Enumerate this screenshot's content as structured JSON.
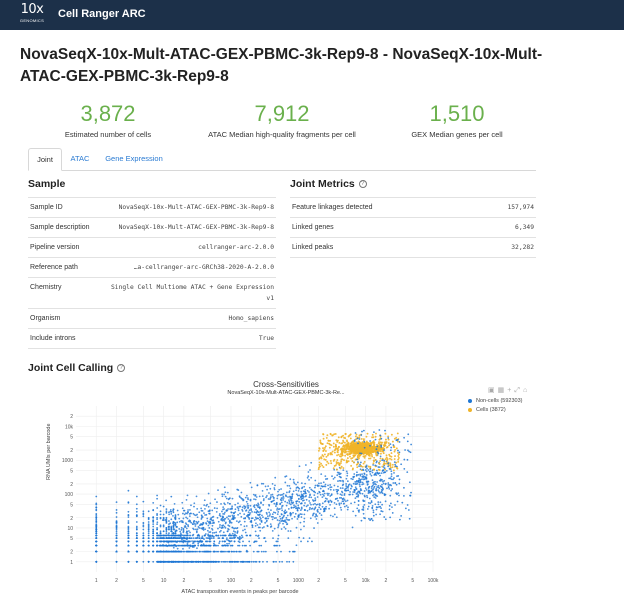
{
  "header": {
    "logo_big": "10x",
    "logo_small": "GENOMICS",
    "product": "Cell Ranger ARC"
  },
  "page_title": "NovaSeqX-10x-Mult-ATAC-GEX-PBMC-3k-Rep9-8 - NovaSeqX-10x-Mult-ATAC-GEX-PBMC-3k-Rep9-8",
  "kpis": [
    {
      "value": "3,872",
      "label": "Estimated number of cells"
    },
    {
      "value": "7,912",
      "label": "ATAC Median high-quality fragments per cell"
    },
    {
      "value": "1,510",
      "label": "GEX Median genes per cell"
    }
  ],
  "tabs": [
    {
      "label": "Joint",
      "active": true
    },
    {
      "label": "ATAC",
      "active": false
    },
    {
      "label": "Gene Expression",
      "active": false
    }
  ],
  "sample": {
    "title": "Sample",
    "rows": [
      {
        "key": "Sample ID",
        "value": "NovaSeqX-10x-Mult-ATAC-GEX-PBMC-3k-Rep9-8"
      },
      {
        "key": "Sample description",
        "value": "NovaSeqX-10x-Mult-ATAC-GEX-PBMC-3k-Rep9-8"
      },
      {
        "key": "Pipeline version",
        "value": "cellranger-arc-2.0.0"
      },
      {
        "key": "Reference path",
        "value": "…a-cellranger-arc-GRCh38-2020-A-2.0.0"
      },
      {
        "key": "Chemistry",
        "value": "Single Cell Multiome ATAC + Gene Expression v1"
      },
      {
        "key": "Organism",
        "value": "Homo_sapiens"
      },
      {
        "key": "Include introns",
        "value": "True"
      }
    ]
  },
  "joint_metrics": {
    "title": "Joint Metrics",
    "rows": [
      {
        "key": "Feature linkages detected",
        "value": "157,974"
      },
      {
        "key": "Linked genes",
        "value": "6,349"
      },
      {
        "key": "Linked peaks",
        "value": "32,282"
      }
    ]
  },
  "cell_calling": {
    "title": "Joint Cell Calling",
    "help_icon": "question-circle-icon",
    "modebar_icons": [
      "camera-icon",
      "zoom-box-icon",
      "plus-icon",
      "autoscale-icon",
      "home-icon"
    ]
  },
  "chart_data": {
    "type": "scatter",
    "title": "Cross-Sensitivities",
    "subtitle": "NovaSeqX-10x-Mult-ATAC-GEX-PBMC-3k-Re...",
    "xlabel": "ATAC transposition events in peaks per barcode",
    "ylabel": "RNA UMIs per barcode",
    "x_scale": "log",
    "y_scale": "log",
    "xlim": [
      0.5,
      100000
    ],
    "ylim": [
      0.5,
      40000
    ],
    "x_ticks": [
      "1",
      "2",
      "5",
      "10",
      "2",
      "5",
      "100",
      "2",
      "5",
      "1000",
      "2",
      "5",
      "10k",
      "2",
      "5",
      "100k"
    ],
    "y_ticks": [
      "1",
      "2",
      "5",
      "10",
      "2",
      "5",
      "100",
      "2",
      "5",
      "1000",
      "2",
      "5",
      "10k",
      "2"
    ],
    "grid": true,
    "legend_position": "right",
    "series": [
      {
        "name": "Non-cells (592303)",
        "color": "#1f77d4"
      },
      {
        "name": "Cells (3872)",
        "color": "#f0b429"
      }
    ]
  }
}
